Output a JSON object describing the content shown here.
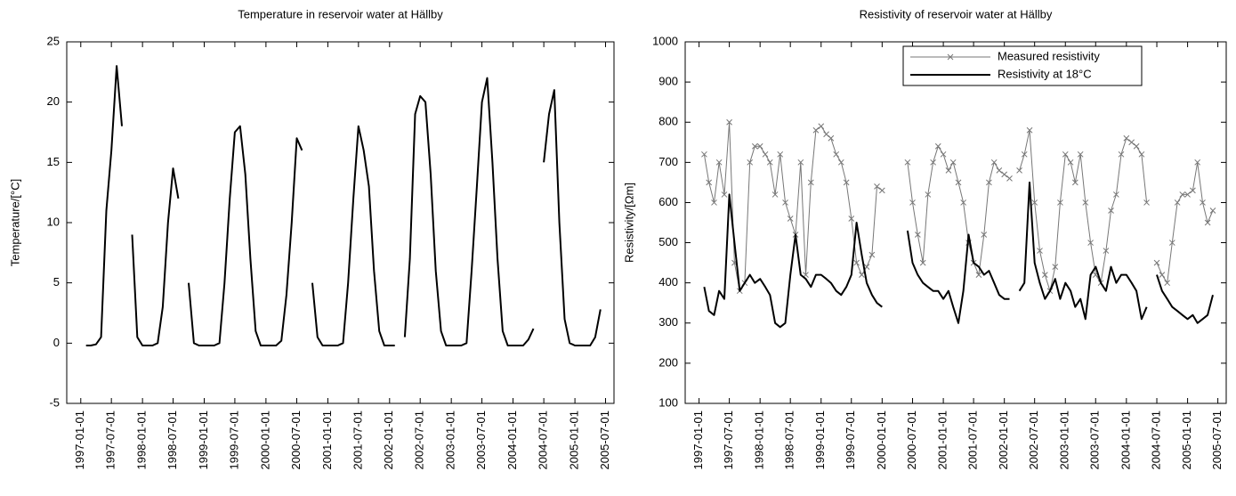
{
  "chart_data": [
    {
      "type": "line",
      "title": "Temperature in reservoir water at Hällby",
      "y_label": "Temperature/[°C]",
      "xlim": [
        "1996-10-10",
        "2005-08-20"
      ],
      "ylim": [
        -5,
        25
      ],
      "yticks": [
        -5,
        0,
        5,
        10,
        15,
        20,
        25
      ],
      "xticks": [
        "1997-01-01",
        "1997-07-01",
        "1998-01-01",
        "1998-07-01",
        "1999-01-01",
        "1999-07-01",
        "2000-01-01",
        "2000-07-01",
        "2001-01-01",
        "2001-07-01",
        "2002-01-01",
        "2002-07-01",
        "2003-01-01",
        "2003-07-01",
        "2004-01-01",
        "2004-07-01",
        "2005-01-01",
        "2005-07-01"
      ],
      "x": [
        "1997-02-01",
        "1997-03-01",
        "1997-04-01",
        "1997-05-01",
        "1997-06-01",
        "1997-07-01",
        "1997-08-01",
        "1997-09-01",
        "1997-10-01",
        "1997-11-01",
        "1997-12-01",
        "1998-01-01",
        "1998-02-01",
        "1998-03-01",
        "1998-04-01",
        "1998-05-01",
        "1998-06-01",
        "1998-07-01",
        "1998-08-01",
        "1998-09-01",
        "1998-10-01",
        "1998-11-01",
        "1998-12-01",
        "1999-01-01",
        "1999-02-01",
        "1999-03-01",
        "1999-04-01",
        "1999-05-01",
        "1999-06-01",
        "1999-07-01",
        "1999-08-01",
        "1999-09-01",
        "1999-10-01",
        "1999-11-01",
        "1999-12-01",
        "2000-01-01",
        "2000-02-01",
        "2000-03-01",
        "2000-04-01",
        "2000-05-01",
        "2000-06-01",
        "2000-07-01",
        "2000-08-01",
        "2000-09-01",
        "2000-10-01",
        "2000-11-01",
        "2000-12-01",
        "2001-01-01",
        "2001-02-01",
        "2001-03-01",
        "2001-04-01",
        "2001-05-01",
        "2001-06-01",
        "2001-07-01",
        "2001-08-01",
        "2001-09-01",
        "2001-10-01",
        "2001-11-01",
        "2001-12-01",
        "2002-01-01",
        "2002-02-01",
        "2002-03-01",
        "2002-04-01",
        "2002-05-01",
        "2002-06-01",
        "2002-07-01",
        "2002-08-01",
        "2002-09-01",
        "2002-10-01",
        "2002-11-01",
        "2002-12-01",
        "2003-01-01",
        "2003-02-01",
        "2003-03-01",
        "2003-04-01",
        "2003-05-01",
        "2003-06-01",
        "2003-07-01",
        "2003-08-01",
        "2003-09-01",
        "2003-10-01",
        "2003-11-01",
        "2003-12-01",
        "2004-01-01",
        "2004-02-01",
        "2004-03-01",
        "2004-04-01",
        "2004-05-01",
        "2004-06-01",
        "2004-07-01",
        "2004-08-01",
        "2004-09-01",
        "2004-10-01",
        "2004-11-01",
        "2004-12-01",
        "2005-01-01",
        "2005-02-01",
        "2005-03-01",
        "2005-04-01",
        "2005-05-01",
        "2005-06-01"
      ],
      "series": [
        {
          "color": "#000000",
          "values": [
            -0.2,
            -0.2,
            -0.1,
            0.5,
            11,
            16,
            23,
            18,
            null,
            9,
            0.5,
            -0.2,
            -0.2,
            -0.2,
            0,
            3,
            10,
            14.5,
            12,
            null,
            5,
            0,
            -0.2,
            -0.2,
            -0.2,
            -0.2,
            0,
            5,
            12,
            17.5,
            18,
            14,
            7,
            1,
            -0.2,
            -0.2,
            -0.2,
            -0.2,
            0.2,
            4,
            10,
            17,
            16,
            null,
            5,
            0.5,
            -0.2,
            -0.2,
            -0.2,
            -0.2,
            0,
            5,
            12,
            18,
            16,
            13,
            6,
            1,
            -0.2,
            -0.2,
            -0.2,
            null,
            0.5,
            7,
            19,
            20.5,
            20,
            14,
            6,
            1,
            -0.2,
            -0.2,
            -0.2,
            -0.2,
            0,
            6,
            13,
            20,
            22,
            15,
            7,
            1,
            -0.2,
            -0.2,
            -0.2,
            -0.2,
            0.3,
            1.2,
            null,
            15,
            19,
            21,
            10,
            2,
            0,
            -0.2,
            -0.2,
            -0.2,
            -0.2,
            0.5,
            2.8
          ]
        }
      ]
    },
    {
      "type": "line",
      "title": "Resistivity of reservoir water at Hällby",
      "y_label": "Resistivity/[Ωm]",
      "xlim": [
        "1996-10-10",
        "2005-08-20"
      ],
      "ylim": [
        100,
        1000
      ],
      "yticks": [
        100,
        200,
        300,
        400,
        500,
        600,
        700,
        800,
        900,
        1000
      ],
      "legend": "upper right",
      "xticks": [
        "1997-01-01",
        "1997-07-01",
        "1998-01-01",
        "1998-07-01",
        "1999-01-01",
        "1999-07-01",
        "2000-01-01",
        "2000-07-01",
        "2001-01-01",
        "2001-07-01",
        "2002-01-01",
        "2002-07-01",
        "2003-01-01",
        "2003-07-01",
        "2004-01-01",
        "2004-07-01",
        "2005-01-01",
        "2005-07-01"
      ],
      "x": [
        "1997-02-01",
        "1997-03-01",
        "1997-04-01",
        "1997-05-01",
        "1997-06-01",
        "1997-07-01",
        "1997-08-01",
        "1997-09-01",
        "1997-10-01",
        "1997-11-01",
        "1997-12-01",
        "1998-01-01",
        "1998-02-01",
        "1998-03-01",
        "1998-04-01",
        "1998-05-01",
        "1998-06-01",
        "1998-07-01",
        "1998-08-01",
        "1998-09-01",
        "1998-10-01",
        "1998-11-01",
        "1998-12-01",
        "1999-01-01",
        "1999-02-01",
        "1999-03-01",
        "1999-04-01",
        "1999-05-01",
        "1999-06-01",
        "1999-07-01",
        "1999-08-01",
        "1999-09-01",
        "1999-10-01",
        "1999-11-01",
        "1999-12-01",
        "2000-01-01",
        "2000-02-01",
        "2000-03-01",
        "2000-04-01",
        "2000-05-01",
        "2000-06-01",
        "2000-07-01",
        "2000-08-01",
        "2000-09-01",
        "2000-10-01",
        "2000-11-01",
        "2000-12-01",
        "2001-01-01",
        "2001-02-01",
        "2001-03-01",
        "2001-04-01",
        "2001-05-01",
        "2001-06-01",
        "2001-07-01",
        "2001-08-01",
        "2001-09-01",
        "2001-10-01",
        "2001-11-01",
        "2001-12-01",
        "2002-01-01",
        "2002-02-01",
        "2002-03-01",
        "2002-04-01",
        "2002-05-01",
        "2002-06-01",
        "2002-07-01",
        "2002-08-01",
        "2002-09-01",
        "2002-10-01",
        "2002-11-01",
        "2002-12-01",
        "2003-01-01",
        "2003-02-01",
        "2003-03-01",
        "2003-04-01",
        "2003-05-01",
        "2003-06-01",
        "2003-07-01",
        "2003-08-01",
        "2003-09-01",
        "2003-10-01",
        "2003-11-01",
        "2003-12-01",
        "2004-01-01",
        "2004-02-01",
        "2004-03-01",
        "2004-04-01",
        "2004-05-01",
        "2004-06-01",
        "2004-07-01",
        "2004-08-01",
        "2004-09-01",
        "2004-10-01",
        "2004-11-01",
        "2004-12-01",
        "2005-01-01",
        "2005-02-01",
        "2005-03-01",
        "2005-04-01",
        "2005-05-01",
        "2005-06-01"
      ],
      "series": [
        {
          "name": "Measured resistivity",
          "color": "#777777",
          "marker": "x",
          "values": [
            720,
            650,
            600,
            700,
            620,
            800,
            450,
            380,
            400,
            700,
            740,
            740,
            720,
            700,
            620,
            720,
            600,
            560,
            520,
            700,
            420,
            650,
            780,
            790,
            770,
            760,
            720,
            700,
            650,
            560,
            450,
            420,
            440,
            470,
            640,
            630,
            null,
            null,
            null,
            null,
            700,
            600,
            520,
            450,
            620,
            700,
            740,
            720,
            680,
            700,
            650,
            600,
            500,
            450,
            420,
            520,
            650,
            700,
            680,
            670,
            660,
            null,
            680,
            720,
            780,
            600,
            480,
            420,
            380,
            440,
            600,
            720,
            700,
            650,
            720,
            600,
            500,
            420,
            400,
            480,
            580,
            620,
            720,
            760,
            750,
            740,
            720,
            600,
            null,
            450,
            420,
            400,
            500,
            600,
            620,
            620,
            630,
            700,
            600,
            550,
            580
          ]
        },
        {
          "name": "Resistivity at 18°C",
          "color": "#000000",
          "values": [
            390,
            330,
            320,
            380,
            360,
            620,
            500,
            380,
            400,
            420,
            400,
            410,
            390,
            370,
            300,
            290,
            300,
            420,
            520,
            420,
            410,
            390,
            420,
            420,
            410,
            400,
            380,
            370,
            390,
            420,
            550,
            470,
            400,
            370,
            350,
            340,
            null,
            null,
            null,
            null,
            530,
            450,
            420,
            400,
            390,
            380,
            380,
            360,
            380,
            340,
            300,
            380,
            520,
            450,
            440,
            420,
            430,
            400,
            370,
            360,
            360,
            null,
            380,
            400,
            650,
            450,
            400,
            360,
            380,
            410,
            360,
            400,
            380,
            340,
            360,
            310,
            420,
            440,
            400,
            380,
            440,
            400,
            420,
            420,
            400,
            380,
            310,
            340,
            null,
            420,
            380,
            360,
            340,
            330,
            320,
            310,
            320,
            300,
            310,
            320,
            370
          ]
        }
      ]
    }
  ]
}
